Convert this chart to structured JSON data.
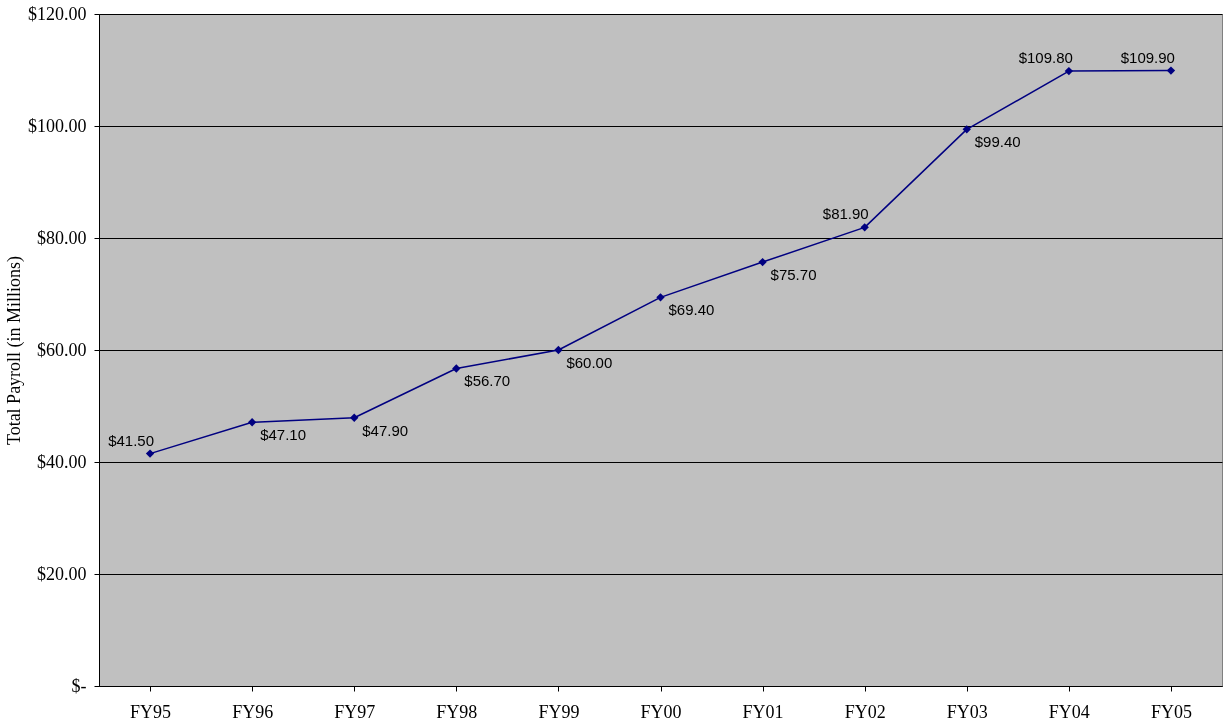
{
  "chart_data": {
    "type": "line",
    "ylabel": "Total Payroll (in Millions)",
    "categories": [
      "FY95",
      "FY96",
      "FY97",
      "FY98",
      "FY99",
      "FY00",
      "FY01",
      "FY02",
      "FY03",
      "FY04",
      "FY05"
    ],
    "series": [
      {
        "color": "#000080",
        "values": [
          41.5,
          47.1,
          47.9,
          56.7,
          60.0,
          69.4,
          75.7,
          81.9,
          99.4,
          109.8,
          109.9
        ],
        "value_labels": [
          "$41.50",
          "$47.10",
          "$47.90",
          "$56.70",
          "$60.00",
          "$69.40",
          "$75.70",
          "$81.90",
          "$99.40",
          "$109.80",
          "$109.90"
        ]
      }
    ],
    "ylim": [
      0,
      120
    ],
    "yticks": [
      {
        "value": 0,
        "label": "$-"
      },
      {
        "value": 20,
        "label": "$20.00"
      },
      {
        "value": 40,
        "label": "$40.00"
      },
      {
        "value": 60,
        "label": "$60.00"
      },
      {
        "value": 80,
        "label": "$80.00"
      },
      {
        "value": 100,
        "label": "$100.00"
      },
      {
        "value": 120,
        "label": "$120.00"
      }
    ],
    "grid": "y",
    "marker": "diamond",
    "line_style": "solid"
  }
}
